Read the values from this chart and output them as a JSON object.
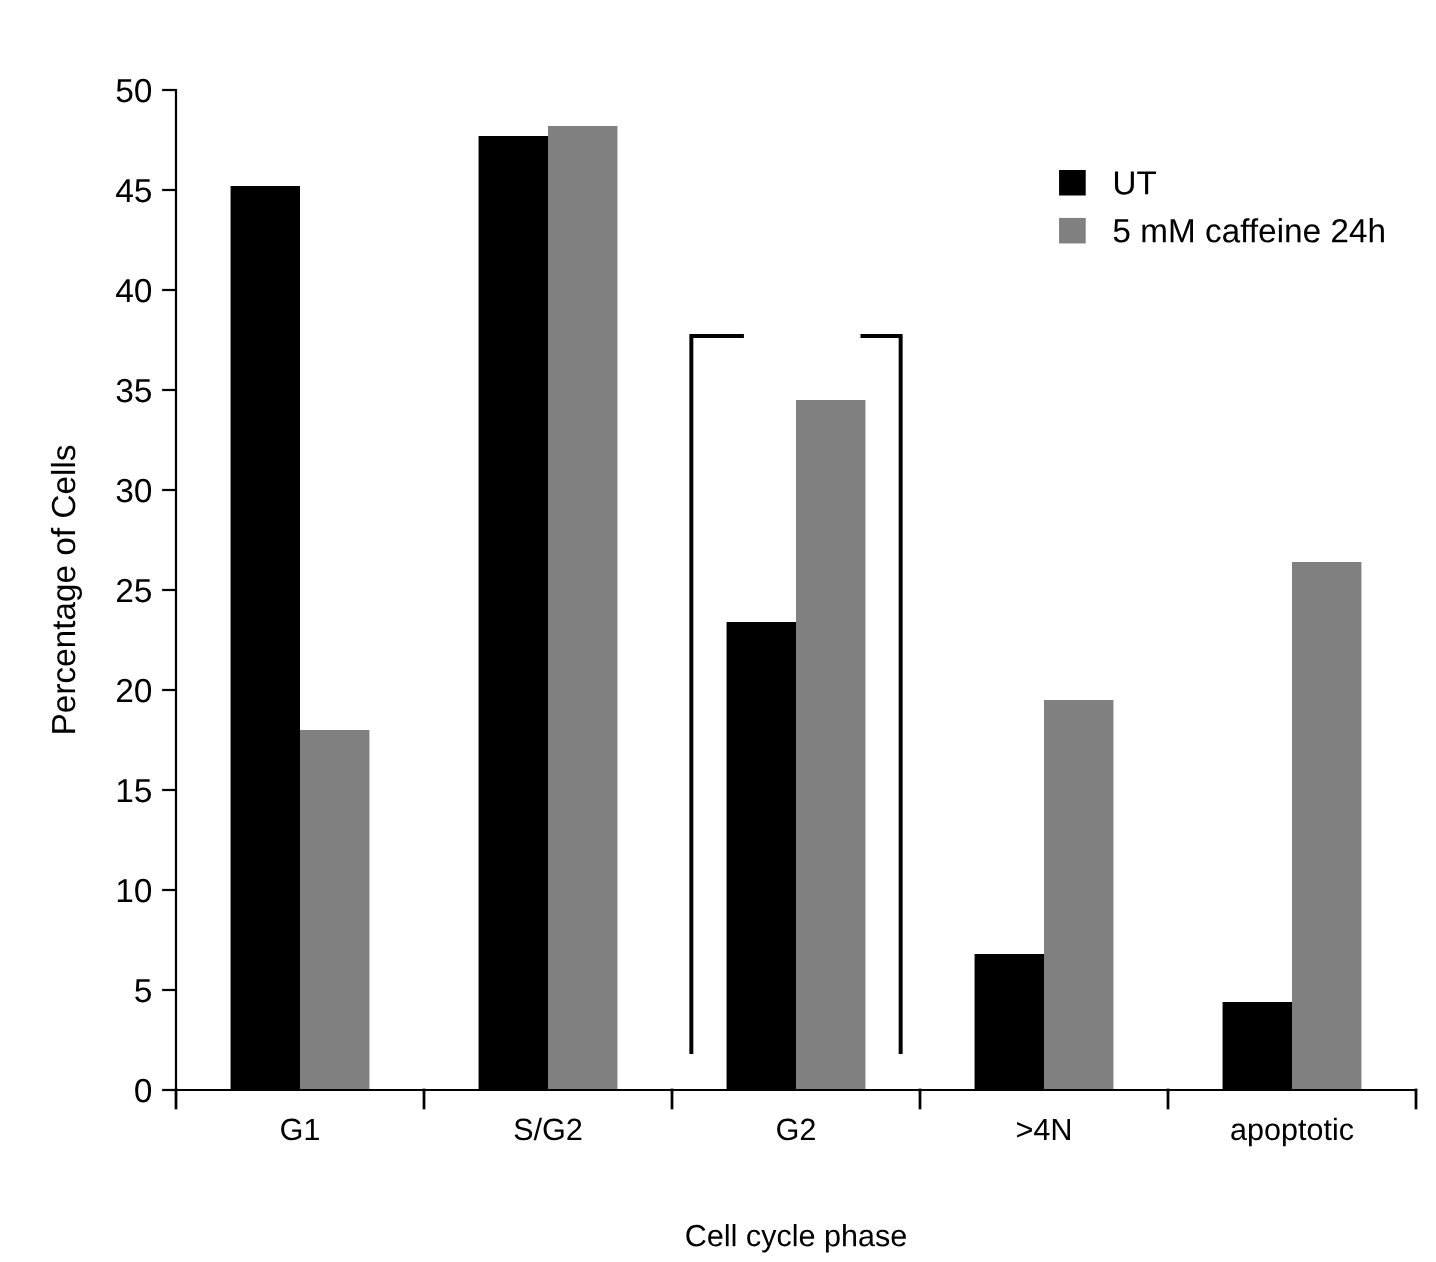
{
  "chart_data": {
    "type": "bar",
    "xlabel": "Cell cycle phase",
    "ylabel": "Percentage of Cells",
    "categories": [
      "G1",
      "S/G2",
      "G2",
      ">4N",
      "apoptotic"
    ],
    "series": [
      {
        "name": "UT",
        "color": "#000000",
        "values": [
          45.2,
          47.7,
          23.4,
          6.8,
          4.4
        ]
      },
      {
        "name": "5 mM caffeine 24h",
        "color": "#808080",
        "values": [
          18.0,
          48.2,
          34.5,
          19.5,
          26.4
        ]
      }
    ],
    "ylim": [
      0,
      50
    ],
    "yticks": [
      0,
      5,
      10,
      15,
      20,
      25,
      30,
      35,
      40,
      45,
      50
    ],
    "grid": false,
    "legend": "top right"
  }
}
